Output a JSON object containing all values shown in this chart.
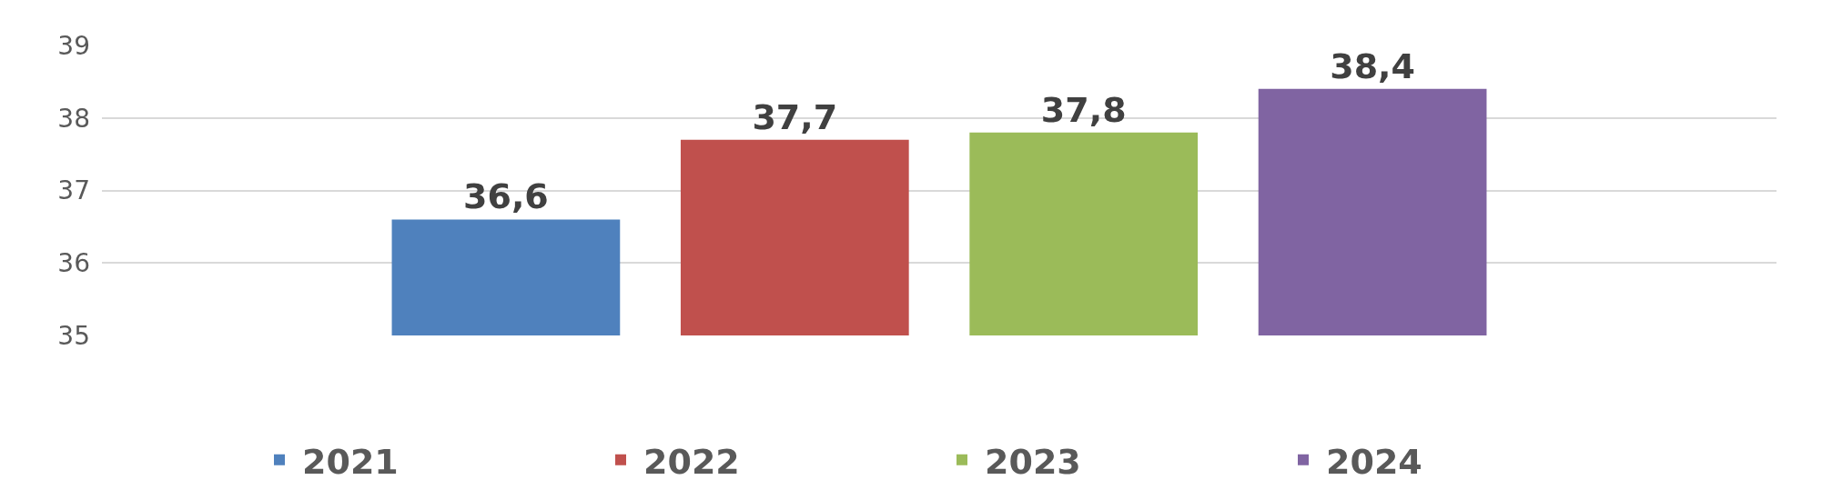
{
  "chart_data": {
    "type": "bar",
    "categories": [
      null
    ],
    "series": [
      {
        "name": "2021",
        "color": "#4f81bd",
        "values": [
          36.6
        ],
        "value_labels": [
          "36,6"
        ]
      },
      {
        "name": "2022",
        "color": "#c0504d",
        "values": [
          37.7
        ],
        "value_labels": [
          "37,7"
        ]
      },
      {
        "name": "2023",
        "color": "#9bbb59",
        "values": [
          37.8
        ],
        "value_labels": [
          "37,8"
        ]
      },
      {
        "name": "2024",
        "color": "#8064a2",
        "values": [
          38.4
        ],
        "value_labels": [
          "38,4"
        ]
      }
    ],
    "ylim": [
      35,
      39
    ],
    "yticks": [
      35,
      36,
      37,
      38,
      39
    ],
    "grid": "y",
    "legend": "bottom",
    "tick_labels": "y"
  }
}
